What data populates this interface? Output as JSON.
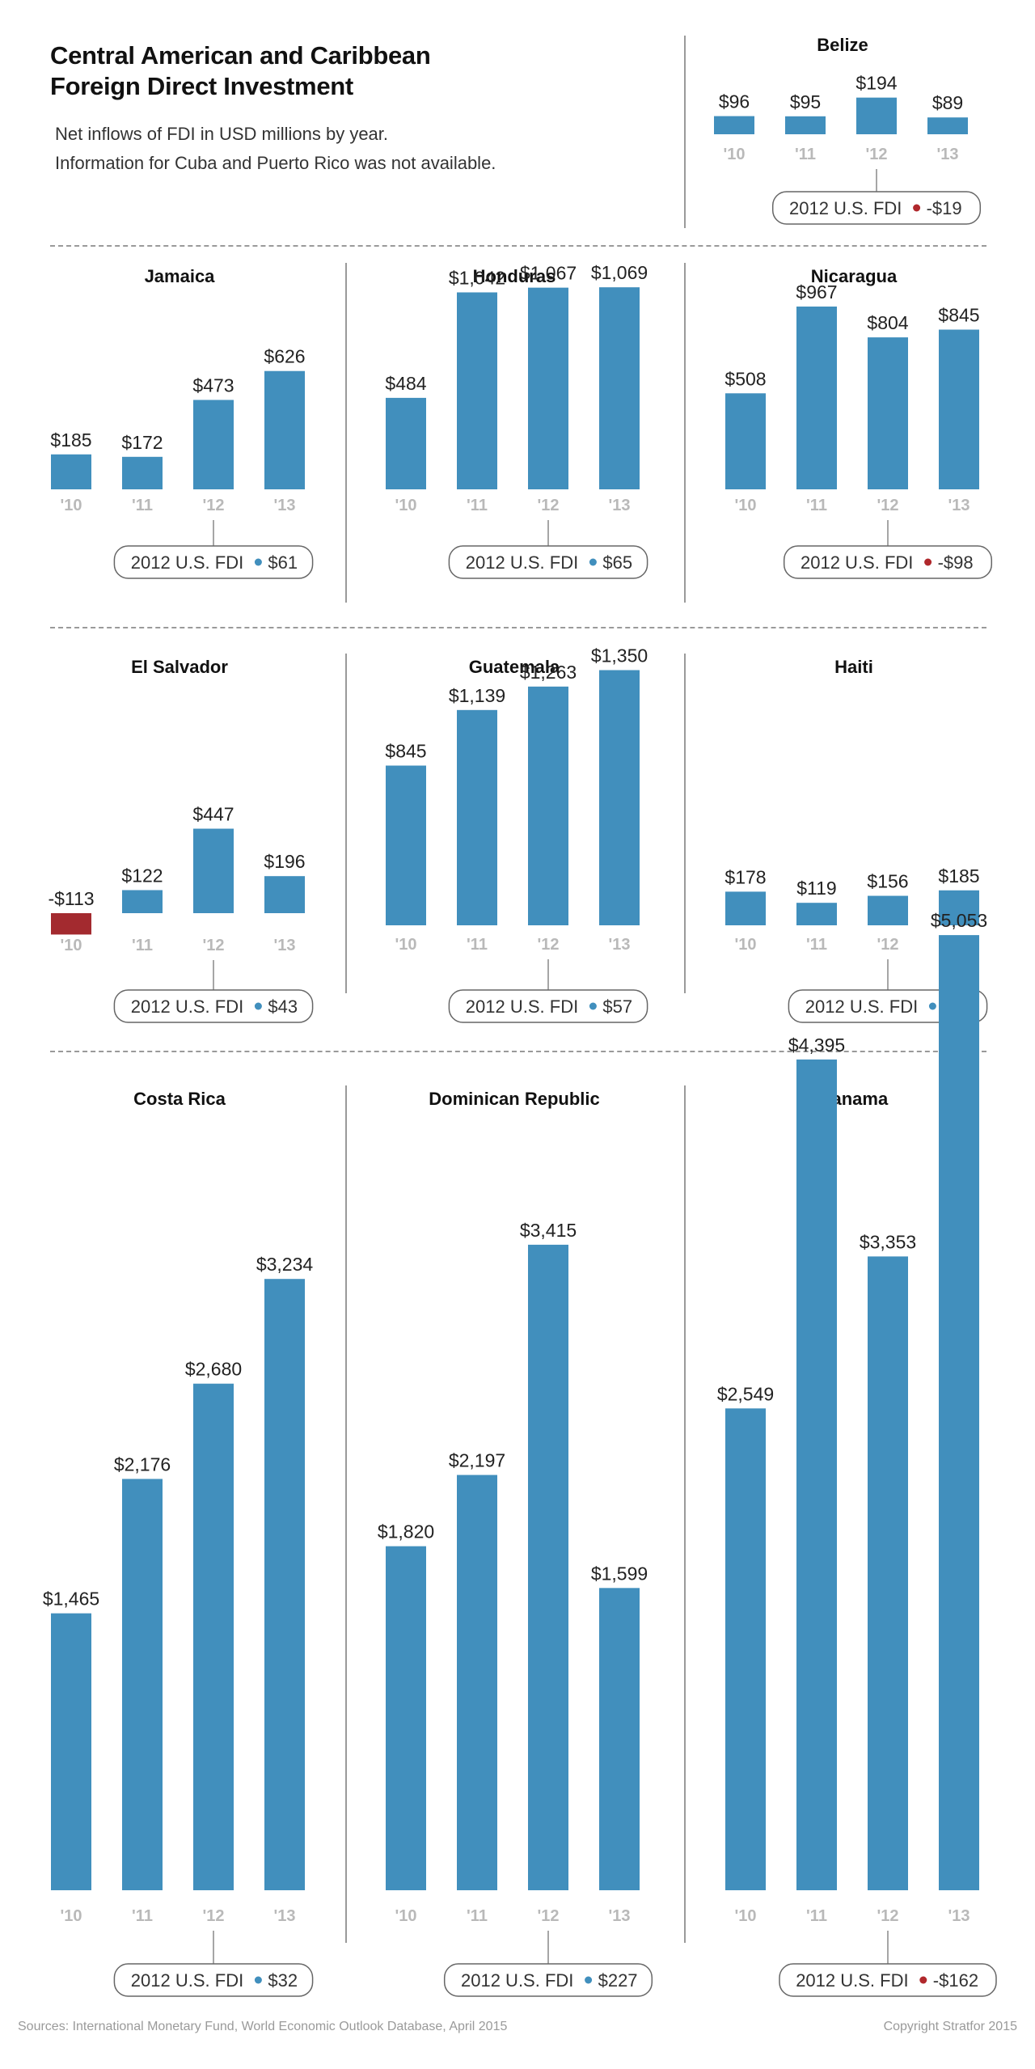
{
  "title_lines": [
    "Central American and Caribbean",
    "Foreign Direct Investment"
  ],
  "subtitle_lines": [
    "Net inflows of FDI in USD millions by year.",
    "Information for Cuba and Puerto Rico was not available."
  ],
  "footer": {
    "source": "Sources: International Monetary Fund, World Economic Outlook Database, April 2015",
    "copyright": "Copyright Stratfor 2015"
  },
  "colors": {
    "bar": "#418fbd",
    "negative_bar": "#a32a2f",
    "dot_positive": "#418fbd",
    "dot_negative": "#b0282c",
    "year_label": "#b9b9b9"
  },
  "chart_data": [
    {
      "type": "bar",
      "title": "Belize",
      "categories": [
        "'10",
        "'11",
        "'12",
        "'13"
      ],
      "values": [
        96,
        95,
        194,
        89
      ],
      "labels": [
        "$96",
        "$95",
        "$194",
        "$89"
      ],
      "us_fdi_2012": {
        "label": "2012 U.S. FDI",
        "value_text": "-$19",
        "value": -19
      }
    },
    {
      "type": "bar",
      "title": "Jamaica",
      "categories": [
        "'10",
        "'11",
        "'12",
        "'13"
      ],
      "values": [
        185,
        172,
        473,
        626
      ],
      "labels": [
        "$185",
        "$172",
        "$473",
        "$626"
      ],
      "us_fdi_2012": {
        "label": "2012 U.S. FDI",
        "value_text": "$61",
        "value": 61
      }
    },
    {
      "type": "bar",
      "title": "Honduras",
      "categories": [
        "'10",
        "'11",
        "'12",
        "'13"
      ],
      "values": [
        484,
        1042,
        1067,
        1069
      ],
      "labels": [
        "$484",
        "$1,042",
        "$1,067",
        "$1,069"
      ],
      "us_fdi_2012": {
        "label": "2012 U.S. FDI",
        "value_text": "$65",
        "value": 65
      }
    },
    {
      "type": "bar",
      "title": "Nicaragua",
      "categories": [
        "'10",
        "'11",
        "'12",
        "'13"
      ],
      "values": [
        508,
        967,
        804,
        845
      ],
      "labels": [
        "$508",
        "$967",
        "$804",
        "$845"
      ],
      "us_fdi_2012": {
        "label": "2012 U.S. FDI",
        "value_text": "-$98",
        "value": -98
      }
    },
    {
      "type": "bar",
      "title": "El Salvador",
      "categories": [
        "'10",
        "'11",
        "'12",
        "'13"
      ],
      "values": [
        -113,
        122,
        447,
        196
      ],
      "labels": [
        "-$113",
        "$122",
        "$447",
        "$196"
      ],
      "us_fdi_2012": {
        "label": "2012 U.S. FDI",
        "value_text": "$43",
        "value": 43
      }
    },
    {
      "type": "bar",
      "title": "Guatemala",
      "categories": [
        "'10",
        "'11",
        "'12",
        "'13"
      ],
      "values": [
        845,
        1139,
        1263,
        1350
      ],
      "labels": [
        "$845",
        "$1,139",
        "$1,263",
        "$1,350"
      ],
      "us_fdi_2012": {
        "label": "2012 U.S. FDI",
        "value_text": "$57",
        "value": 57
      }
    },
    {
      "type": "bar",
      "title": "Haiti",
      "categories": [
        "'10",
        "'11",
        "'12",
        "'13"
      ],
      "values": [
        178,
        119,
        156,
        185
      ],
      "labels": [
        "$178",
        "$119",
        "$156",
        "$185"
      ],
      "us_fdi_2012": {
        "label": "2012 U.S. FDI",
        "value_text": "N/A",
        "value": null
      }
    },
    {
      "type": "bar",
      "title": "Costa Rica",
      "categories": [
        "'10",
        "'11",
        "'12",
        "'13"
      ],
      "values": [
        1465,
        2176,
        2680,
        3234
      ],
      "labels": [
        "$1,465",
        "$2,176",
        "$2,680",
        "$3,234"
      ],
      "us_fdi_2012": {
        "label": "2012 U.S. FDI",
        "value_text": "$32",
        "value": 32
      }
    },
    {
      "type": "bar",
      "title": "Dominican Republic",
      "categories": [
        "'10",
        "'11",
        "'12",
        "'13"
      ],
      "values": [
        1820,
        2197,
        3415,
        1599
      ],
      "labels": [
        "$1,820",
        "$2,197",
        "$3,415",
        "$1,599"
      ],
      "us_fdi_2012": {
        "label": "2012 U.S. FDI",
        "value_text": "$227",
        "value": 227
      }
    },
    {
      "type": "bar",
      "title": "Panama",
      "categories": [
        "'10",
        "'11",
        "'12",
        "'13"
      ],
      "values": [
        2549,
        4395,
        3353,
        5053
      ],
      "labels": [
        "$2,549",
        "$4,395",
        "$3,353",
        "$5,053"
      ],
      "us_fdi_2012": {
        "label": "2012 U.S. FDI",
        "value_text": "-$162",
        "value": -162
      }
    }
  ]
}
